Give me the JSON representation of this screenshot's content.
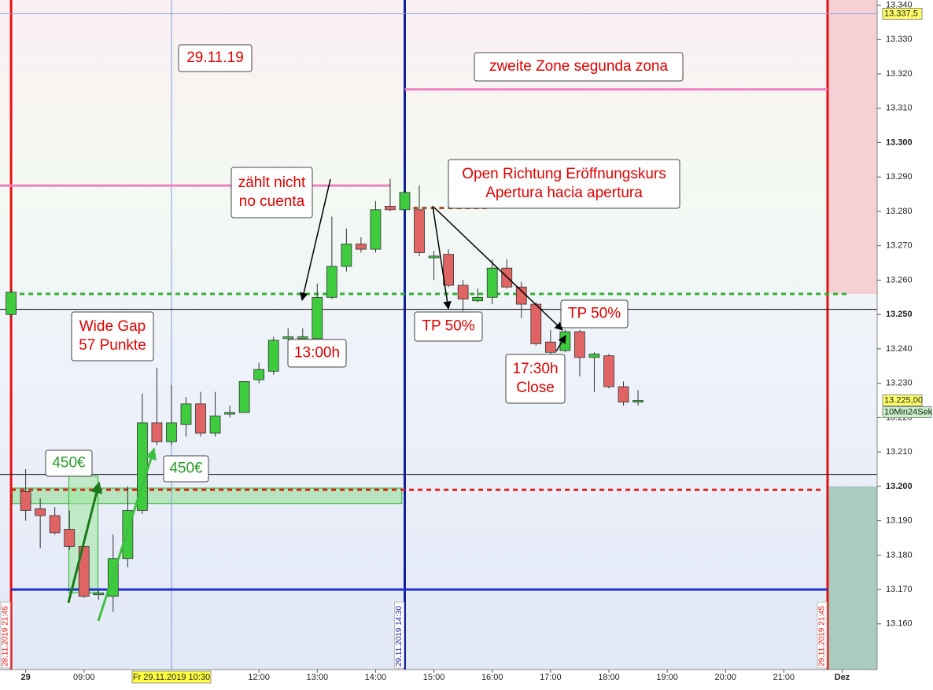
{
  "chart_data": {
    "type": "candlestick",
    "x": [
      7.75,
      8,
      8.25,
      8.5,
      8.75,
      9,
      9.25,
      9.5,
      9.75,
      10,
      10.25,
      10.5,
      10.75,
      11,
      11.25,
      11.5,
      11.75,
      12,
      12.25,
      12.5,
      12.75,
      13,
      13.25,
      13.5,
      13.75,
      14,
      14.25,
      14.5,
      14.75,
      15,
      15.25,
      15.5,
      15.75,
      16,
      16.25,
      16.5,
      16.75,
      17,
      17.25,
      17.5,
      17.75,
      18,
      18.25,
      18.5
    ],
    "open": [
      13250,
      13198.5,
      13193.5,
      13191.5,
      13187.5,
      13182.5,
      13168.5,
      13168,
      13179,
      13193,
      13218.5,
      13213,
      13218,
      13224,
      13215.5,
      13221,
      13221.5,
      13231,
      13233.5,
      13243,
      13243,
      13243,
      13255,
      13264,
      13270.5,
      13269,
      13281.5,
      13280.5,
      13280.5,
      13266.5,
      13267.5,
      13258.5,
      13254,
      13255,
      13263.5,
      13258,
      13253,
      13242,
      13239.5,
      13245,
      13237.5,
      13238,
      13229,
      13224.5
    ],
    "high": [
      13257.5,
      13205,
      13196.5,
      13194,
      13193,
      13184,
      13170,
      13186,
      13200,
      13227,
      13234.5,
      13229.5,
      13226,
      13227.5,
      13227.5,
      13223.5,
      13230.5,
      13236,
      13243.5,
      13246,
      13246,
      13259,
      13278.5,
      13275,
      13272.5,
      13283,
      13289.5,
      13286.5,
      13287.5,
      13268.5,
      13269,
      13260,
      13257.5,
      13266,
      13266,
      13259.5,
      13253.5,
      13245.5,
      13245.5,
      13245.5,
      13239,
      13238.5,
      13230.5,
      13228
    ],
    "low": [
      13249,
      13190,
      13182,
      13186,
      13181.5,
      13167.5,
      13167,
      13163.5,
      13176.5,
      13192,
      13212,
      13212,
      13214.5,
      13214.5,
      13214.5,
      13220,
      13221.5,
      13230,
      13232.5,
      13241,
      13241,
      13243,
      13254.5,
      13262.5,
      13268,
      13268,
      13280,
      13280,
      13267,
      13260,
      13258,
      13251,
      13253.5,
      13253,
      13257.5,
      13249,
      13241,
      13238.5,
      13239,
      13232,
      13227.5,
      13228.5,
      13223.5,
      13223.5
    ],
    "close": [
      13256.5,
      13193,
      13191.5,
      13186.5,
      13182.5,
      13168,
      13169,
      13179,
      13193,
      13218.5,
      13213,
      13218.5,
      13224,
      13215.5,
      13220.5,
      13221.5,
      13230.5,
      13234,
      13242.5,
      13243.5,
      13243.5,
      13255,
      13264,
      13270.5,
      13269,
      13280.5,
      13280.5,
      13285.5,
      13268,
      13267,
      13258.5,
      13254.5,
      13255,
      13263.5,
      13258,
      13253,
      13241.5,
      13239,
      13245,
      13237.5,
      13238.5,
      13229,
      13224.5,
      13225
    ],
    "up_color": "#3ecb3e",
    "down_color": "#e06464",
    "wick_color": "#333333",
    "xlim": [
      7.56,
      22.6
    ],
    "ylim": [
      13146.7,
      13341.5
    ],
    "xticks": [
      {
        "value": 8,
        "label": "29"
      },
      {
        "value": 9,
        "label": "09:00"
      },
      {
        "value": 12,
        "label": "12:00"
      },
      {
        "value": 13,
        "label": "13:00"
      },
      {
        "value": 14,
        "label": "14:00"
      },
      {
        "value": 15,
        "label": "15:00"
      },
      {
        "value": 16,
        "label": "16:00"
      },
      {
        "value": 17,
        "label": "17:00"
      },
      {
        "value": 18,
        "label": "18:00"
      },
      {
        "value": 19,
        "label": "19:00"
      },
      {
        "value": 20,
        "label": "20:00"
      },
      {
        "value": 21,
        "label": "21:00"
      },
      {
        "value": 22,
        "label": "Dez"
      }
    ],
    "crosshair": {
      "value": 10.5,
      "label": "Fr 29.11.2019 10:30"
    },
    "yticks": [
      {
        "value": 13160,
        "label": "13.160"
      },
      {
        "value": 13170,
        "label": "13.170"
      },
      {
        "value": 13180,
        "label": "13.180"
      },
      {
        "value": 13190,
        "label": "13.190"
      },
      {
        "value": 13200,
        "label": "13.200"
      },
      {
        "value": 13210,
        "label": "13.210"
      },
      {
        "value": 13220,
        "label": "13.220"
      },
      {
        "value": 13230,
        "label": "13.230"
      },
      {
        "value": 13240,
        "label": "13.240"
      },
      {
        "value": 13250,
        "label": "13.250"
      },
      {
        "value": 13260,
        "label": "13.260"
      },
      {
        "value": 13270,
        "label": "13.270"
      },
      {
        "value": 13280,
        "label": "13.280"
      },
      {
        "value": 13290,
        "label": "13.290"
      },
      {
        "value": 13300,
        "label": "13.300"
      },
      {
        "value": 13310,
        "label": "13.310"
      },
      {
        "value": 13320,
        "label": "13.320"
      },
      {
        "value": 13330,
        "label": "13.330"
      },
      {
        "value": 13340,
        "label": "13.340"
      }
    ],
    "price_markers": [
      {
        "value": 13337.5,
        "label": "13.337,5"
      },
      {
        "value": 13225,
        "label": "13.225,00"
      }
    ],
    "timer_label": "10Min24Sek",
    "hlines": [
      {
        "value": 13337.5,
        "from": 7.56,
        "to": 22.6,
        "color": "#8fa8d8",
        "width": 1,
        "dash": false
      },
      {
        "value": 13287.5,
        "from": 7.56,
        "to": 14.25,
        "color": "#f080c0",
        "width": 3,
        "dash": false
      },
      {
        "value": 13315.5,
        "from": 14.5,
        "to": 21.75,
        "color": "#f080c0",
        "width": 3,
        "dash": false
      },
      {
        "value": 13256,
        "from": 7.75,
        "to": 22.1,
        "color": "#30b030",
        "width": 3,
        "dash": true
      },
      {
        "value": 13199,
        "from": 7.75,
        "to": 21.65,
        "color": "#e82020",
        "width": 3,
        "dash": true
      },
      {
        "value": 13170,
        "from": 7.75,
        "to": 21.75,
        "color": "#2030d0",
        "width": 3,
        "dash": false
      },
      {
        "value": 13251.5,
        "from": 7.56,
        "to": 22.6,
        "color": "#000000",
        "width": 1,
        "dash": false
      },
      {
        "value": 13203.5,
        "from": 7.56,
        "to": 22.6,
        "color": "#000000",
        "width": 1,
        "dash": false
      },
      {
        "value": 13281,
        "from": 14.5,
        "to": 15.9,
        "color": "#a0522d",
        "width": 3,
        "dash": true
      }
    ],
    "vlines": [
      {
        "value": 7.75,
        "color": "#e81010",
        "width": 3,
        "label": "28.11.2019 21:45"
      },
      {
        "value": 10.5,
        "color": "#7a9ad8",
        "width": 1
      },
      {
        "value": 14.5,
        "color": "#1020a0",
        "width": 3,
        "label": "29.11.2019 14:30"
      },
      {
        "value": 21.75,
        "color": "#e81010",
        "width": 3,
        "label": "29.11.2019 21:45"
      }
    ],
    "zones": [
      {
        "x": [
          21.77,
          22.6
        ],
        "y": [
          13256,
          13341.5
        ],
        "color": "#f5d0d4"
      },
      {
        "x": [
          21.77,
          22.6
        ],
        "y": [
          13146.7,
          13200
        ],
        "color": "#a8ccc0"
      },
      {
        "x": [
          7.77,
          14.45
        ],
        "y": [
          13195,
          13199.5
        ],
        "color": "#8ee08e"
      },
      {
        "x": [
          8.74,
          9.24
        ],
        "y": [
          13169,
          13203
        ],
        "color": "#9ee89e"
      }
    ],
    "annotations": [
      {
        "lines": [
          "29.11.19"
        ],
        "color": "#e00000"
      },
      {
        "lines": [
          "zweite Zone  segunda zona"
        ],
        "color": "#e00000"
      },
      {
        "lines": [
          "Open Richtung Eröffnungskurs",
          "Apertura hacia apertura"
        ],
        "color": "#e00000"
      },
      {
        "lines": [
          "zählt nicht",
          "no cuenta"
        ],
        "color": "#e00000"
      },
      {
        "lines": [
          "Wide Gap",
          "57 Punkte"
        ],
        "color": "#e00000"
      },
      {
        "lines": [
          "13:00h"
        ],
        "color": "#e00000"
      },
      {
        "lines": [
          "TP 50%"
        ],
        "color": "#e00000"
      },
      {
        "lines": [
          "TP 50%"
        ],
        "color": "#e00000"
      },
      {
        "lines": [
          "17:30h",
          "Close"
        ],
        "color": "#e00000"
      },
      {
        "lines": [
          "450€"
        ],
        "color": "#2a9a2a"
      },
      {
        "lines": [
          "450€"
        ],
        "color": "#2a9a2a"
      }
    ]
  }
}
